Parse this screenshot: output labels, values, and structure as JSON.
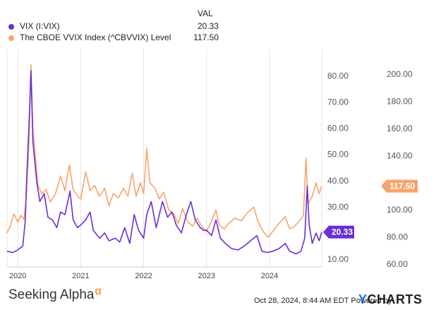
{
  "legend": {
    "header": "VAL",
    "items": [
      {
        "name": "VIX (I:VIX)",
        "value": "20.33",
        "color": "#6a2fd6"
      },
      {
        "name": "The CBOE VVIX Index (^CBVVIX) Level",
        "value": "117.50",
        "color": "#f7a46b"
      }
    ]
  },
  "footer": {
    "brand": "Seeking Alpha",
    "brand_mark": "α",
    "timestamp": "Oct 28, 2024, 8:44 AM EDT Powered by",
    "provider_mark": "Y",
    "provider": "CHARTS"
  },
  "chart_data": {
    "type": "line",
    "x_tick_labels": [
      "2020",
      "2021",
      "2022",
      "2023",
      "2024"
    ],
    "x_range": [
      2019.83,
      2024.83
    ],
    "left_axis": {
      "range": [
        7,
        88
      ],
      "ticks": [
        "10.00",
        "20.00",
        "30.00",
        "40.00",
        "50.00",
        "60.00",
        "70.00",
        "80.00"
      ]
    },
    "right_axis": {
      "range": [
        58,
        214
      ],
      "ticks": [
        "60.00",
        "80.00",
        "100.00",
        "120.00",
        "140.00",
        "160.00",
        "180.00",
        "200.00"
      ]
    },
    "grid": "vertical",
    "series": [
      {
        "name": "VIX (I:VIX)",
        "axis": "left",
        "color": "#6a2fd6",
        "last_label": "20.33",
        "points": [
          [
            2019.83,
            13
          ],
          [
            2019.92,
            12.5
          ],
          [
            2020.0,
            13.5
          ],
          [
            2020.08,
            15
          ],
          [
            2020.12,
            25
          ],
          [
            2020.14,
            40
          ],
          [
            2020.18,
            62
          ],
          [
            2020.21,
            82
          ],
          [
            2020.24,
            55
          ],
          [
            2020.3,
            40
          ],
          [
            2020.35,
            32
          ],
          [
            2020.42,
            35
          ],
          [
            2020.48,
            26
          ],
          [
            2020.55,
            25
          ],
          [
            2020.62,
            22
          ],
          [
            2020.68,
            28
          ],
          [
            2020.75,
            27
          ],
          [
            2020.83,
            36
          ],
          [
            2020.88,
            25
          ],
          [
            2020.95,
            22
          ],
          [
            2021.0,
            23
          ],
          [
            2021.08,
            25
          ],
          [
            2021.15,
            28
          ],
          [
            2021.2,
            21
          ],
          [
            2021.3,
            18
          ],
          [
            2021.38,
            20
          ],
          [
            2021.45,
            17
          ],
          [
            2021.55,
            18
          ],
          [
            2021.62,
            16.5
          ],
          [
            2021.7,
            22
          ],
          [
            2021.78,
            16
          ],
          [
            2021.85,
            27
          ],
          [
            2021.92,
            21
          ],
          [
            2022.0,
            18
          ],
          [
            2022.05,
            27
          ],
          [
            2022.12,
            32
          ],
          [
            2022.2,
            22
          ],
          [
            2022.3,
            32
          ],
          [
            2022.38,
            26
          ],
          [
            2022.45,
            28
          ],
          [
            2022.52,
            23
          ],
          [
            2022.6,
            20
          ],
          [
            2022.68,
            27
          ],
          [
            2022.75,
            32
          ],
          [
            2022.82,
            25
          ],
          [
            2022.9,
            22
          ],
          [
            2022.95,
            21
          ],
          [
            2023.0,
            21
          ],
          [
            2023.08,
            19
          ],
          [
            2023.15,
            25
          ],
          [
            2023.22,
            18
          ],
          [
            2023.3,
            16
          ],
          [
            2023.4,
            14
          ],
          [
            2023.5,
            13.5
          ],
          [
            2023.6,
            15
          ],
          [
            2023.7,
            17
          ],
          [
            2023.8,
            19
          ],
          [
            2023.88,
            13
          ],
          [
            2023.96,
            12.5
          ],
          [
            2024.05,
            13
          ],
          [
            2024.15,
            14
          ],
          [
            2024.25,
            16
          ],
          [
            2024.32,
            13
          ],
          [
            2024.42,
            12
          ],
          [
            2024.5,
            13
          ],
          [
            2024.56,
            18
          ],
          [
            2024.6,
            38
          ],
          [
            2024.63,
            23
          ],
          [
            2024.68,
            16
          ],
          [
            2024.74,
            20
          ],
          [
            2024.79,
            17
          ],
          [
            2024.83,
            20.33
          ]
        ]
      },
      {
        "name": "The CBOE VVIX Index (^CBVVIX) Level",
        "axis": "right",
        "color": "#f7a46b",
        "last_label": "117.50",
        "points": [
          [
            2019.83,
            83
          ],
          [
            2019.88,
            88
          ],
          [
            2019.94,
            97
          ],
          [
            2020.0,
            91
          ],
          [
            2020.05,
            96
          ],
          [
            2020.1,
            93
          ],
          [
            2020.14,
            113
          ],
          [
            2020.18,
            150
          ],
          [
            2020.21,
            207
          ],
          [
            2020.24,
            160
          ],
          [
            2020.28,
            140
          ],
          [
            2020.32,
            118
          ],
          [
            2020.38,
            112
          ],
          [
            2020.45,
            115
          ],
          [
            2020.52,
            106
          ],
          [
            2020.6,
            112
          ],
          [
            2020.68,
            125
          ],
          [
            2020.75,
            114
          ],
          [
            2020.82,
            133
          ],
          [
            2020.88,
            115
          ],
          [
            2020.95,
            110
          ],
          [
            2021.0,
            108
          ],
          [
            2021.08,
            128
          ],
          [
            2021.15,
            114
          ],
          [
            2021.22,
            118
          ],
          [
            2021.3,
            110
          ],
          [
            2021.38,
            116
          ],
          [
            2021.45,
            103
          ],
          [
            2021.52,
            112
          ],
          [
            2021.6,
            109
          ],
          [
            2021.68,
            116
          ],
          [
            2021.75,
            110
          ],
          [
            2021.82,
            127
          ],
          [
            2021.88,
            110
          ],
          [
            2021.95,
            120
          ],
          [
            2022.0,
            112
          ],
          [
            2022.05,
            145
          ],
          [
            2022.1,
            120
          ],
          [
            2022.18,
            116
          ],
          [
            2022.25,
            108
          ],
          [
            2022.32,
            113
          ],
          [
            2022.4,
            100
          ],
          [
            2022.48,
            97
          ],
          [
            2022.55,
            90
          ],
          [
            2022.62,
            101
          ],
          [
            2022.7,
            91
          ],
          [
            2022.78,
            88
          ],
          [
            2022.85,
            94
          ],
          [
            2022.92,
            88
          ],
          [
            2023.0,
            84
          ],
          [
            2023.08,
            92
          ],
          [
            2023.15,
            100
          ],
          [
            2023.2,
            89
          ],
          [
            2023.28,
            86
          ],
          [
            2023.35,
            90
          ],
          [
            2023.45,
            94
          ],
          [
            2023.55,
            92
          ],
          [
            2023.65,
            98
          ],
          [
            2023.75,
            102
          ],
          [
            2023.82,
            91
          ],
          [
            2023.9,
            84
          ],
          [
            2023.98,
            80
          ],
          [
            2024.05,
            84
          ],
          [
            2024.15,
            90
          ],
          [
            2024.25,
            95
          ],
          [
            2024.32,
            86
          ],
          [
            2024.4,
            88
          ],
          [
            2024.48,
            92
          ],
          [
            2024.54,
            96
          ],
          [
            2024.58,
            138
          ],
          [
            2024.61,
            104
          ],
          [
            2024.68,
            110
          ],
          [
            2024.74,
            120
          ],
          [
            2024.79,
            112
          ],
          [
            2024.83,
            117.5
          ]
        ]
      }
    ]
  }
}
